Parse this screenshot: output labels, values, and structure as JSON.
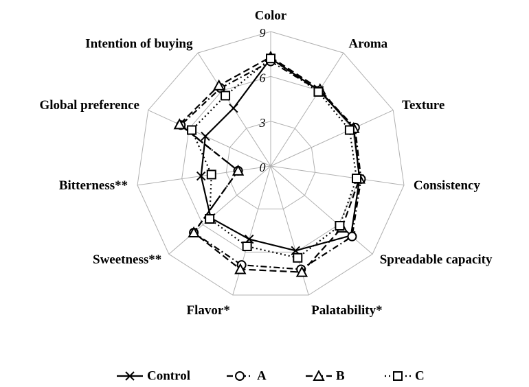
{
  "chart_data": {
    "type": "radar",
    "categories": [
      "Color",
      "Aroma",
      "Texture",
      "Consistency",
      "Spreadable capacity",
      "Palatability*",
      "Flavor*",
      "Sweetness**",
      "Bitterness**",
      "Global preference",
      "Intention of buying"
    ],
    "rlim": [
      0,
      9
    ],
    "rticks": [
      0,
      3,
      6,
      9
    ],
    "grid": true,
    "legend": "bottom",
    "series": [
      {
        "name": "Control",
        "color": "#000000",
        "line": "solid",
        "marker": "x",
        "values": [
          7.2,
          6.0,
          6.1,
          6.0,
          7.1,
          5.9,
          5.1,
          5.3,
          4.7,
          4.8,
          4.6
        ]
      },
      {
        "name": "A",
        "color": "#000000",
        "line": "dashdot",
        "marker": "circle",
        "values": [
          7.0,
          6.0,
          6.2,
          6.1,
          7.2,
          7.2,
          6.9,
          6.8,
          2.2,
          6.6,
          6.2
        ]
      },
      {
        "name": "B",
        "color": "#000000",
        "line": "dashed",
        "marker": "triangle",
        "values": [
          7.3,
          6.1,
          6.1,
          6.0,
          6.3,
          7.4,
          7.2,
          6.8,
          2.2,
          6.7,
          6.4
        ]
      },
      {
        "name": "C",
        "color": "#000000",
        "line": "dotted",
        "marker": "square",
        "values": [
          7.2,
          5.9,
          5.8,
          5.8,
          6.1,
          6.4,
          5.6,
          5.4,
          4.0,
          5.8,
          5.6
        ]
      }
    ]
  }
}
